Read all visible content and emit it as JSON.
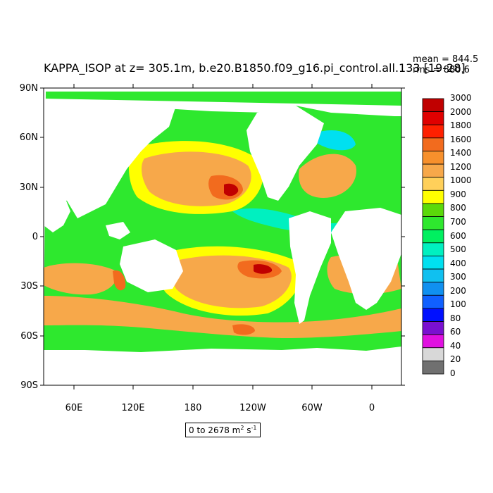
{
  "title": "KAPPA_ISOP at z= 305.1m, b.e20.B1850.f09_g16.pi_control.all.133 [19-28]",
  "stats": {
    "mean": "mean = 844.5",
    "rms": "rms = 880.6"
  },
  "lat_ticks": [
    "90N",
    "60N",
    "30N",
    "0",
    "30S",
    "60S",
    "90S"
  ],
  "lon_ticks": [
    "60E",
    "120E",
    "180",
    "120W",
    "60W",
    "0"
  ],
  "range_label": {
    "prefix": "0 to 2678 m",
    "sup2": "2",
    "mid": " s",
    "sup1": "-1"
  },
  "colorbar": {
    "labels": [
      "3000",
      "2000",
      "1800",
      "1600",
      "1400",
      "1200",
      "1000",
      "900",
      "800",
      "700",
      "600",
      "500",
      "400",
      "300",
      "200",
      "100",
      "80",
      "60",
      "40",
      "20",
      "0"
    ],
    "colors": [
      "#c00000",
      "#e00000",
      "#ff2000",
      "#f26b1e",
      "#f7902c",
      "#f7a84a",
      "#ffd05a",
      "#ffff00",
      "#5ad90a",
      "#2ee82e",
      "#00f060",
      "#00f0c0",
      "#00e0f0",
      "#10c0f0",
      "#1090f0",
      "#1060ff",
      "#0010ff",
      "#7a10d0",
      "#e010e0",
      "#d8d8d8",
      "#707070"
    ]
  },
  "colors": {
    "land": "#ffffff",
    "ocean_base": "#2ee82e"
  }
}
